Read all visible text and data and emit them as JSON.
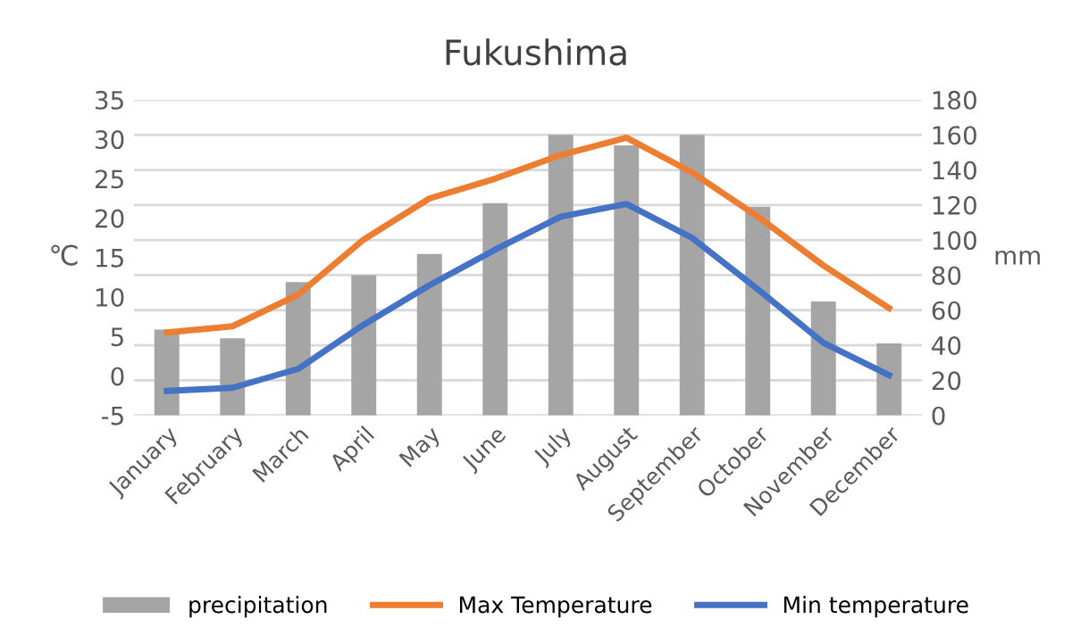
{
  "chart_data": {
    "type": "line",
    "title": "Fukushima",
    "ylabel": "℃",
    "y2label": "mm",
    "categories": [
      "January",
      "February",
      "March",
      "April",
      "May",
      "June",
      "July",
      "August",
      "September",
      "October",
      "November",
      "December"
    ],
    "series": [
      {
        "name": "precipitation",
        "type": "bar",
        "axis": "y2",
        "color": "#a5a5a5",
        "values": [
          49,
          44,
          76,
          80,
          92,
          121,
          160,
          154,
          160,
          119,
          65,
          41
        ]
      },
      {
        "name": "Max Temperature",
        "color": "#ed7d31",
        "values": [
          5.5,
          6.3,
          10.3,
          17.3,
          22.5,
          25,
          28,
          30.2,
          25.8,
          20.2,
          14,
          8.6
        ]
      },
      {
        "name": "Min temperature",
        "color": "#4472c4",
        "values": [
          -1.9,
          -1.5,
          0.9,
          6.5,
          11.5,
          16,
          20.2,
          21.8,
          17.5,
          11,
          4.2,
          0.1
        ]
      }
    ],
    "ylim": [
      -5,
      35
    ],
    "yticks": [
      -5,
      0,
      5,
      10,
      15,
      20,
      25,
      30,
      35
    ],
    "y2lim": [
      0,
      180
    ],
    "y2ticks": [
      0,
      20,
      40,
      60,
      80,
      100,
      120,
      140,
      160,
      180
    ],
    "grid": "y",
    "legend": "bottom"
  }
}
